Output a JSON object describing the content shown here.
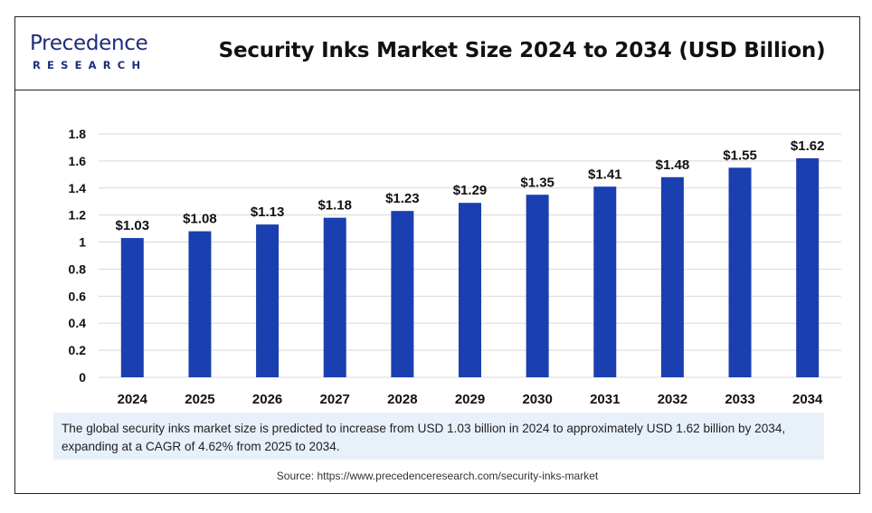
{
  "header": {
    "logo_main": "Precedence",
    "logo_sub": "RESEARCH",
    "title": "Security Inks Market Size 2024 to 2034 (USD Billion)"
  },
  "note": "The global security inks market size is predicted to increase from USD 1.03 billion in 2024 to approximately USD 1.62 billion by 2034, expanding at a CAGR of 4.62% from 2025 to 2034.",
  "source": "Source: https://www.precedenceresearch.com/security-inks-market",
  "colors": {
    "bar": "#1a3fb0",
    "brand": "#1e2d7a",
    "note_bg": "#e8f0fa"
  },
  "chart_data": {
    "type": "bar",
    "title": "Security Inks Market Size 2024 to 2034 (USD Billion)",
    "categories": [
      "2024",
      "2025",
      "2026",
      "2027",
      "2028",
      "2029",
      "2030",
      "2031",
      "2032",
      "2033",
      "2034"
    ],
    "values": [
      1.03,
      1.08,
      1.13,
      1.18,
      1.23,
      1.29,
      1.35,
      1.41,
      1.48,
      1.55,
      1.62
    ],
    "data_labels": [
      "$1.03",
      "$1.08",
      "$1.13",
      "$1.18",
      "$1.23",
      "$1.29",
      "$1.35",
      "$1.41",
      "$1.48",
      "$1.55",
      "$1.62"
    ],
    "yticks": [
      "0",
      "0.2",
      "0.4",
      "0.6",
      "0.8",
      "1",
      "1.2",
      "1.4",
      "1.6",
      "1.8"
    ],
    "ylim": [
      0,
      1.8
    ],
    "grid": true,
    "legend": false,
    "xlabel": "",
    "ylabel": ""
  }
}
